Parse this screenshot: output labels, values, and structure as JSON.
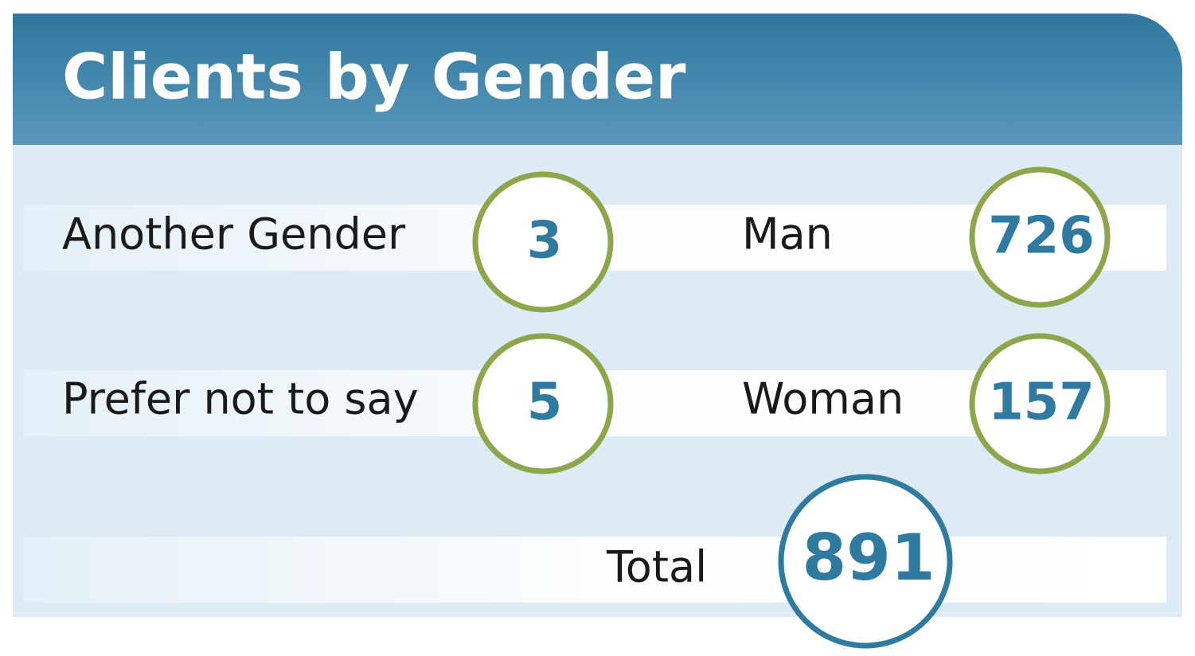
{
  "header": {
    "title": "Clients by Gender"
  },
  "items": [
    {
      "label": "Another Gender",
      "value": 3
    },
    {
      "label": "Man",
      "value": 726
    },
    {
      "label": "Prefer not to say",
      "value": 5
    },
    {
      "label": "Woman",
      "value": 157
    }
  ],
  "total": {
    "label": "Total",
    "value": 891
  }
}
